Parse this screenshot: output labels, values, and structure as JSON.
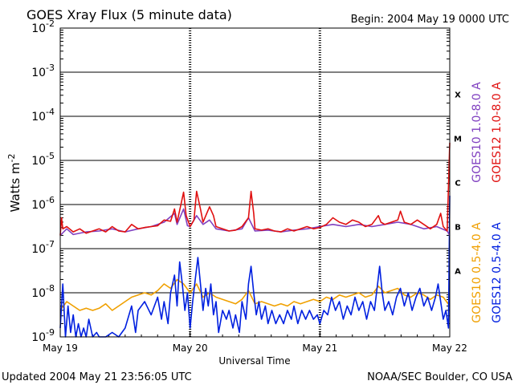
{
  "chart_data": {
    "type": "line",
    "title": "GOES Xray Flux (5 minute data)",
    "begin_label": "Begin:  2004 May 19 0000 UTC",
    "xlabel": "Universal Time",
    "ylabel_main": "Watts m",
    "ylabel_exp": "-2",
    "y_scale": "log",
    "ylim": [
      1e-09,
      0.01
    ],
    "x_unit": "days since 2004 May 19 0000 UTC",
    "xlim": [
      0,
      3
    ],
    "x_ticks": [
      {
        "x": 0,
        "label": "May 19"
      },
      {
        "x": 1,
        "label": "May 20"
      },
      {
        "x": 2,
        "label": "May 21"
      },
      {
        "x": 3,
        "label": "May 22"
      }
    ],
    "y_ticks": [
      {
        "exp": -9,
        "label": "10",
        "sup": "-9"
      },
      {
        "exp": -8,
        "label": "10",
        "sup": "-8"
      },
      {
        "exp": -7,
        "label": "10",
        "sup": "-7"
      },
      {
        "exp": -6,
        "label": "10",
        "sup": "-6"
      },
      {
        "exp": -5,
        "label": "10",
        "sup": "-5"
      },
      {
        "exp": -4,
        "label": "10",
        "sup": "-4"
      },
      {
        "exp": -3,
        "label": "10",
        "sup": "-3"
      },
      {
        "exp": -2,
        "label": "10",
        "sup": "-2"
      }
    ],
    "flare_classes": [
      {
        "label": "A",
        "exp": -7.5
      },
      {
        "label": "B",
        "exp": -6.5
      },
      {
        "label": "C",
        "exp": -5.5
      },
      {
        "label": "M",
        "exp": -4.5
      },
      {
        "label": "X",
        "exp": -3.5
      }
    ],
    "grid": true,
    "legend_placement": "right, vertical",
    "legend": [
      {
        "label": "GOES10 1.0-8.0 A",
        "color": "#8040c0",
        "row": "top"
      },
      {
        "label": "GOES12 1.0-8.0 A",
        "color": "#e01010",
        "row": "top"
      },
      {
        "label": "GOES10 0.5-4.0 A",
        "color": "#f0a000",
        "row": "bottom"
      },
      {
        "label": "GOES12 0.5-4.0 A",
        "color": "#0020e0",
        "row": "bottom"
      }
    ],
    "series": [
      {
        "name": "GOES10 1.0-8.0 A",
        "color": "#8040c0",
        "points": [
          [
            0.0,
            -6.7
          ],
          [
            0.05,
            -6.55
          ],
          [
            0.1,
            -6.68
          ],
          [
            0.2,
            -6.62
          ],
          [
            0.3,
            -6.6
          ],
          [
            0.4,
            -6.55
          ],
          [
            0.5,
            -6.62
          ],
          [
            0.6,
            -6.55
          ],
          [
            0.7,
            -6.5
          ],
          [
            0.8,
            -6.4
          ],
          [
            0.88,
            -6.2
          ],
          [
            0.9,
            -6.45
          ],
          [
            0.95,
            -6.1
          ],
          [
            0.98,
            -6.48
          ],
          [
            1.0,
            -6.5
          ],
          [
            1.05,
            -6.25
          ],
          [
            1.1,
            -6.45
          ],
          [
            1.15,
            -6.35
          ],
          [
            1.2,
            -6.55
          ],
          [
            1.3,
            -6.6
          ],
          [
            1.4,
            -6.55
          ],
          [
            1.45,
            -6.3
          ],
          [
            1.5,
            -6.6
          ],
          [
            1.6,
            -6.58
          ],
          [
            1.7,
            -6.62
          ],
          [
            1.8,
            -6.58
          ],
          [
            1.9,
            -6.55
          ],
          [
            2.0,
            -6.5
          ],
          [
            2.1,
            -6.45
          ],
          [
            2.2,
            -6.5
          ],
          [
            2.3,
            -6.45
          ],
          [
            2.4,
            -6.5
          ],
          [
            2.5,
            -6.45
          ],
          [
            2.6,
            -6.4
          ],
          [
            2.7,
            -6.45
          ],
          [
            2.8,
            -6.55
          ],
          [
            2.9,
            -6.5
          ],
          [
            2.98,
            -6.6
          ],
          [
            3.0,
            -6.7
          ]
        ]
      },
      {
        "name": "GOES12 1.0-8.0 A",
        "color": "#e01010",
        "points": [
          [
            0.0,
            -6.7
          ],
          [
            0.01,
            -6.3
          ],
          [
            0.02,
            -6.55
          ],
          [
            0.05,
            -6.5
          ],
          [
            0.1,
            -6.62
          ],
          [
            0.15,
            -6.55
          ],
          [
            0.2,
            -6.65
          ],
          [
            0.25,
            -6.6
          ],
          [
            0.3,
            -6.55
          ],
          [
            0.35,
            -6.62
          ],
          [
            0.4,
            -6.5
          ],
          [
            0.45,
            -6.6
          ],
          [
            0.5,
            -6.62
          ],
          [
            0.55,
            -6.45
          ],
          [
            0.6,
            -6.55
          ],
          [
            0.65,
            -6.52
          ],
          [
            0.7,
            -6.5
          ],
          [
            0.75,
            -6.48
          ],
          [
            0.8,
            -6.35
          ],
          [
            0.85,
            -6.38
          ],
          [
            0.88,
            -6.1
          ],
          [
            0.9,
            -6.4
          ],
          [
            0.95,
            -5.72
          ],
          [
            0.97,
            -6.25
          ],
          [
            1.0,
            -6.5
          ],
          [
            1.03,
            -6.35
          ],
          [
            1.05,
            -5.7
          ],
          [
            1.08,
            -6.1
          ],
          [
            1.1,
            -6.4
          ],
          [
            1.15,
            -6.05
          ],
          [
            1.18,
            -6.25
          ],
          [
            1.2,
            -6.5
          ],
          [
            1.25,
            -6.55
          ],
          [
            1.3,
            -6.6
          ],
          [
            1.35,
            -6.58
          ],
          [
            1.4,
            -6.5
          ],
          [
            1.45,
            -6.3
          ],
          [
            1.47,
            -5.7
          ],
          [
            1.49,
            -6.2
          ],
          [
            1.5,
            -6.55
          ],
          [
            1.55,
            -6.58
          ],
          [
            1.6,
            -6.55
          ],
          [
            1.65,
            -6.6
          ],
          [
            1.7,
            -6.62
          ],
          [
            1.75,
            -6.55
          ],
          [
            1.8,
            -6.6
          ],
          [
            1.85,
            -6.55
          ],
          [
            1.9,
            -6.5
          ],
          [
            1.95,
            -6.55
          ],
          [
            2.0,
            -6.52
          ],
          [
            2.05,
            -6.45
          ],
          [
            2.1,
            -6.3
          ],
          [
            2.15,
            -6.4
          ],
          [
            2.2,
            -6.45
          ],
          [
            2.25,
            -6.35
          ],
          [
            2.3,
            -6.4
          ],
          [
            2.35,
            -6.5
          ],
          [
            2.4,
            -6.45
          ],
          [
            2.45,
            -6.25
          ],
          [
            2.47,
            -6.4
          ],
          [
            2.5,
            -6.45
          ],
          [
            2.55,
            -6.4
          ],
          [
            2.6,
            -6.35
          ],
          [
            2.62,
            -6.15
          ],
          [
            2.65,
            -6.4
          ],
          [
            2.7,
            -6.45
          ],
          [
            2.75,
            -6.35
          ],
          [
            2.8,
            -6.45
          ],
          [
            2.85,
            -6.55
          ],
          [
            2.9,
            -6.45
          ],
          [
            2.93,
            -6.2
          ],
          [
            2.95,
            -6.5
          ],
          [
            2.98,
            -6.6
          ],
          [
            3.0,
            -4.6
          ]
        ]
      },
      {
        "name": "GOES10 0.5-4.0 A",
        "color": "#f0a000",
        "points": [
          [
            0.0,
            -8.4
          ],
          [
            0.05,
            -8.2
          ],
          [
            0.1,
            -8.3
          ],
          [
            0.15,
            -8.4
          ],
          [
            0.2,
            -8.35
          ],
          [
            0.25,
            -8.4
          ],
          [
            0.3,
            -8.35
          ],
          [
            0.35,
            -8.25
          ],
          [
            0.4,
            -8.4
          ],
          [
            0.45,
            -8.3
          ],
          [
            0.5,
            -8.2
          ],
          [
            0.55,
            -8.1
          ],
          [
            0.6,
            -8.05
          ],
          [
            0.65,
            -8.0
          ],
          [
            0.7,
            -8.05
          ],
          [
            0.75,
            -7.95
          ],
          [
            0.8,
            -7.8
          ],
          [
            0.85,
            -7.9
          ],
          [
            0.9,
            -7.7
          ],
          [
            0.95,
            -7.8
          ],
          [
            1.0,
            -8.0
          ],
          [
            1.05,
            -7.8
          ],
          [
            1.1,
            -8.1
          ],
          [
            1.15,
            -8.0
          ],
          [
            1.2,
            -8.1
          ],
          [
            1.25,
            -8.15
          ],
          [
            1.3,
            -8.2
          ],
          [
            1.35,
            -8.25
          ],
          [
            1.4,
            -8.15
          ],
          [
            1.45,
            -7.95
          ],
          [
            1.5,
            -8.25
          ],
          [
            1.55,
            -8.2
          ],
          [
            1.6,
            -8.25
          ],
          [
            1.65,
            -8.3
          ],
          [
            1.7,
            -8.25
          ],
          [
            1.75,
            -8.3
          ],
          [
            1.8,
            -8.2
          ],
          [
            1.85,
            -8.25
          ],
          [
            1.9,
            -8.2
          ],
          [
            1.95,
            -8.15
          ],
          [
            2.0,
            -8.2
          ],
          [
            2.05,
            -8.1
          ],
          [
            2.1,
            -8.15
          ],
          [
            2.15,
            -8.05
          ],
          [
            2.2,
            -8.1
          ],
          [
            2.25,
            -8.05
          ],
          [
            2.3,
            -8.0
          ],
          [
            2.35,
            -8.1
          ],
          [
            2.4,
            -8.05
          ],
          [
            2.45,
            -7.85
          ],
          [
            2.5,
            -8.0
          ],
          [
            2.55,
            -7.95
          ],
          [
            2.6,
            -7.9
          ],
          [
            2.65,
            -8.05
          ],
          [
            2.7,
            -8.1
          ],
          [
            2.75,
            -8.0
          ],
          [
            2.8,
            -8.05
          ],
          [
            2.85,
            -8.15
          ],
          [
            2.9,
            -8.05
          ],
          [
            2.95,
            -8.1
          ],
          [
            3.0,
            -8.3
          ]
        ]
      },
      {
        "name": "GOES12 0.5-4.0 A",
        "color": "#0020e0",
        "points": [
          [
            0.0,
            -8.8
          ],
          [
            0.02,
            -7.8
          ],
          [
            0.04,
            -9.0
          ],
          [
            0.06,
            -8.3
          ],
          [
            0.08,
            -8.9
          ],
          [
            0.1,
            -8.5
          ],
          [
            0.12,
            -9.0
          ],
          [
            0.14,
            -8.7
          ],
          [
            0.16,
            -9.0
          ],
          [
            0.18,
            -8.8
          ],
          [
            0.2,
            -9.0
          ],
          [
            0.22,
            -8.6
          ],
          [
            0.25,
            -9.0
          ],
          [
            0.28,
            -8.9
          ],
          [
            0.3,
            -9.0
          ],
          [
            0.35,
            -9.0
          ],
          [
            0.4,
            -8.9
          ],
          [
            0.45,
            -9.0
          ],
          [
            0.5,
            -8.8
          ],
          [
            0.55,
            -8.3
          ],
          [
            0.58,
            -8.9
          ],
          [
            0.6,
            -8.4
          ],
          [
            0.65,
            -8.2
          ],
          [
            0.7,
            -8.5
          ],
          [
            0.75,
            -8.1
          ],
          [
            0.78,
            -8.6
          ],
          [
            0.8,
            -8.2
          ],
          [
            0.83,
            -8.7
          ],
          [
            0.85,
            -8.0
          ],
          [
            0.88,
            -7.6
          ],
          [
            0.9,
            -8.3
          ],
          [
            0.92,
            -7.3
          ],
          [
            0.94,
            -7.8
          ],
          [
            0.96,
            -8.4
          ],
          [
            0.98,
            -8.0
          ],
          [
            1.0,
            -8.8
          ],
          [
            1.02,
            -8.2
          ],
          [
            1.04,
            -7.7
          ],
          [
            1.06,
            -7.2
          ],
          [
            1.08,
            -7.8
          ],
          [
            1.1,
            -8.4
          ],
          [
            1.12,
            -7.9
          ],
          [
            1.14,
            -8.3
          ],
          [
            1.16,
            -7.8
          ],
          [
            1.18,
            -8.5
          ],
          [
            1.2,
            -8.2
          ],
          [
            1.22,
            -8.9
          ],
          [
            1.25,
            -8.4
          ],
          [
            1.28,
            -8.6
          ],
          [
            1.3,
            -8.4
          ],
          [
            1.33,
            -8.8
          ],
          [
            1.35,
            -8.5
          ],
          [
            1.38,
            -8.9
          ],
          [
            1.4,
            -8.2
          ],
          [
            1.43,
            -8.6
          ],
          [
            1.45,
            -7.8
          ],
          [
            1.47,
            -7.4
          ],
          [
            1.49,
            -8.0
          ],
          [
            1.51,
            -8.5
          ],
          [
            1.53,
            -8.2
          ],
          [
            1.55,
            -8.6
          ],
          [
            1.58,
            -8.3
          ],
          [
            1.6,
            -8.7
          ],
          [
            1.63,
            -8.4
          ],
          [
            1.66,
            -8.7
          ],
          [
            1.69,
            -8.5
          ],
          [
            1.72,
            -8.7
          ],
          [
            1.75,
            -8.4
          ],
          [
            1.78,
            -8.6
          ],
          [
            1.8,
            -8.3
          ],
          [
            1.83,
            -8.7
          ],
          [
            1.86,
            -8.4
          ],
          [
            1.89,
            -8.6
          ],
          [
            1.92,
            -8.4
          ],
          [
            1.95,
            -8.6
          ],
          [
            1.98,
            -8.5
          ],
          [
            2.0,
            -8.7
          ],
          [
            2.03,
            -8.4
          ],
          [
            2.06,
            -8.5
          ],
          [
            2.09,
            -8.1
          ],
          [
            2.12,
            -8.4
          ],
          [
            2.15,
            -8.2
          ],
          [
            2.18,
            -8.6
          ],
          [
            2.21,
            -8.3
          ],
          [
            2.24,
            -8.5
          ],
          [
            2.27,
            -8.1
          ],
          [
            2.3,
            -8.4
          ],
          [
            2.33,
            -8.2
          ],
          [
            2.36,
            -8.6
          ],
          [
            2.39,
            -8.2
          ],
          [
            2.42,
            -8.4
          ],
          [
            2.44,
            -7.9
          ],
          [
            2.46,
            -7.4
          ],
          [
            2.48,
            -8.0
          ],
          [
            2.5,
            -8.4
          ],
          [
            2.53,
            -8.2
          ],
          [
            2.56,
            -8.5
          ],
          [
            2.59,
            -8.1
          ],
          [
            2.62,
            -7.9
          ],
          [
            2.65,
            -8.3
          ],
          [
            2.68,
            -8.0
          ],
          [
            2.71,
            -8.4
          ],
          [
            2.74,
            -8.1
          ],
          [
            2.77,
            -7.9
          ],
          [
            2.8,
            -8.3
          ],
          [
            2.83,
            -8.1
          ],
          [
            2.86,
            -8.4
          ],
          [
            2.89,
            -8.1
          ],
          [
            2.91,
            -7.8
          ],
          [
            2.93,
            -8.2
          ],
          [
            2.95,
            -8.6
          ],
          [
            2.97,
            -8.4
          ],
          [
            2.99,
            -8.8
          ],
          [
            3.0,
            -5.8
          ]
        ]
      }
    ],
    "footer_left": "Updated 2004 May 21 23:56:05 UTC",
    "footer_right": "NOAA/SEC Boulder, CO USA"
  }
}
